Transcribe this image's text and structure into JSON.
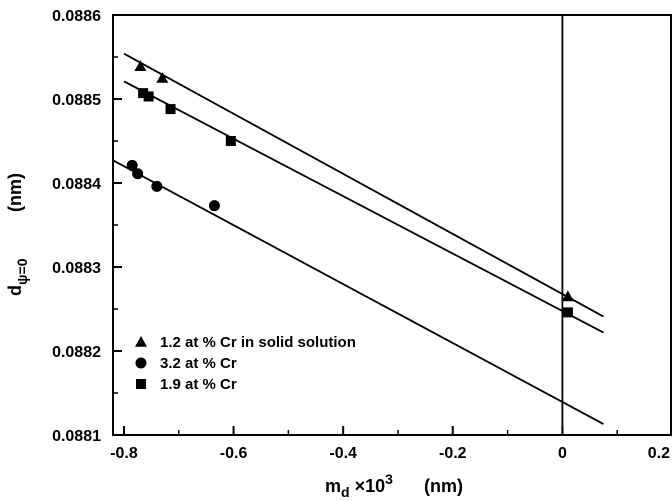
{
  "chart_data": {
    "type": "scatter",
    "title": "",
    "xlabel": {
      "main": "m",
      "sub": "d",
      "mid": " ×10",
      "sup": "3",
      "unit": "(nm)"
    },
    "ylabel": {
      "main": "d",
      "sub": "ψ=0",
      "unit": "(nm)"
    },
    "xlim": [
      -0.82,
      0.2
    ],
    "ylim": [
      0.0881,
      0.0886
    ],
    "x_ticks": [
      -0.8,
      -0.6,
      -0.4,
      -0.2,
      0,
      0.2
    ],
    "x_tick_labels": [
      "-0.8",
      "-0.6",
      "-0.4",
      "-0.2",
      "0",
      "0.2"
    ],
    "y_ticks": [
      0.0881,
      0.0882,
      0.0883,
      0.0884,
      0.0885,
      0.0886
    ],
    "y_tick_labels": [
      "0.0881",
      "0.0882",
      "0.0883",
      "0.0884",
      "0.0885",
      "0.0886"
    ],
    "vertical_reference_line_x": 0,
    "grid": false,
    "legend_position": "bottom-left",
    "series": [
      {
        "name": "1.2 at % Cr in solid solution",
        "marker": "triangle",
        "points": [
          {
            "x": -0.77,
            "y": 0.088539
          },
          {
            "x": -0.73,
            "y": 0.088525
          },
          {
            "x": 0.01,
            "y": 0.088265
          }
        ],
        "fit_line": {
          "x": [
            -0.8,
            0.075
          ],
          "y": [
            0.088554,
            0.088241
          ]
        }
      },
      {
        "name": "3.2 at % Cr",
        "marker": "circle",
        "points": [
          {
            "x": -0.785,
            "y": 0.088421
          },
          {
            "x": -0.775,
            "y": 0.088411
          },
          {
            "x": -0.74,
            "y": 0.088396
          },
          {
            "x": -0.635,
            "y": 0.088373
          }
        ],
        "fit_line": {
          "x": [
            -0.82,
            0.075
          ],
          "y": [
            0.088427,
            0.088113
          ]
        }
      },
      {
        "name": "1.9 at % Cr",
        "marker": "square",
        "points": [
          {
            "x": -0.765,
            "y": 0.088507
          },
          {
            "x": -0.755,
            "y": 0.088503
          },
          {
            "x": -0.715,
            "y": 0.088488
          },
          {
            "x": -0.605,
            "y": 0.08845
          },
          {
            "x": 0.01,
            "y": 0.088246
          }
        ],
        "fit_line": {
          "x": [
            -0.8,
            0.075
          ],
          "y": [
            0.088521,
            0.088222
          ]
        }
      }
    ]
  }
}
